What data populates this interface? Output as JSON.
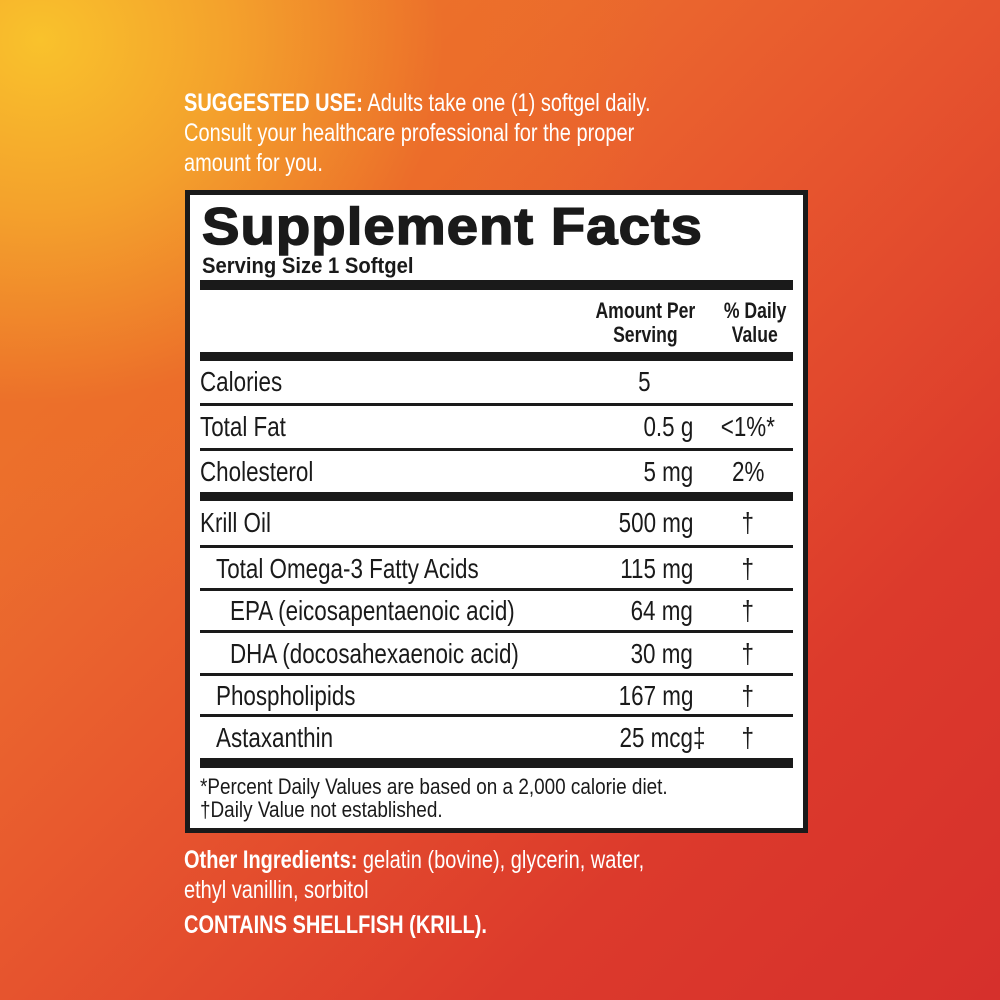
{
  "suggested_use": {
    "heading": "SUGGESTED USE:",
    "line1": "Adults take one (1) softgel daily.",
    "line2": "Consult your healthcare professional for the proper",
    "line3": "amount for you."
  },
  "facts": {
    "title": "Supplement Facts",
    "serving_size": "Serving Size 1 Softgel",
    "col_amount": [
      "Amount Per",
      "Serving"
    ],
    "col_dv": [
      "% Daily",
      "Value"
    ],
    "rows": [
      {
        "name": "Calories",
        "amount": "5",
        "dv": ""
      },
      {
        "name": "Total Fat",
        "amount": "0.5 g",
        "dv": "<1%*"
      },
      {
        "name": "Cholesterol",
        "amount": "5 mg",
        "dv": "2%"
      },
      {
        "name": "Krill Oil",
        "amount": "500 mg",
        "dv": "†"
      },
      {
        "name": "Total Omega-3 Fatty Acids",
        "amount": "115 mg",
        "dv": "†"
      },
      {
        "name": "EPA (eicosapentaenoic acid)",
        "amount": "64 mg",
        "dv": "†"
      },
      {
        "name": "DHA (docosahexaenoic acid)",
        "amount": "30 mg",
        "dv": "†"
      },
      {
        "name": "Phospholipids",
        "amount": "167 mg",
        "dv": "†"
      },
      {
        "name": "Astaxanthin",
        "amount": "25 mcg‡",
        "dv": "†"
      }
    ],
    "footnote1": "*Percent Daily Values are based on a 2,000 calorie diet.",
    "footnote2": "†Daily Value not established."
  },
  "other_ingredients": {
    "heading": "Other Ingredients:",
    "line1": "gelatin (bovine), glycerin, water,",
    "line2": "ethyl vanillin, sorbitol"
  },
  "allergen": "CONTAINS SHELLFISH (KRILL).",
  "colors": {
    "text": "#ffffff",
    "label_ink": "#1a1a1a",
    "bg_yellow": "#f9c22c",
    "bg_red": "#d6302c"
  }
}
